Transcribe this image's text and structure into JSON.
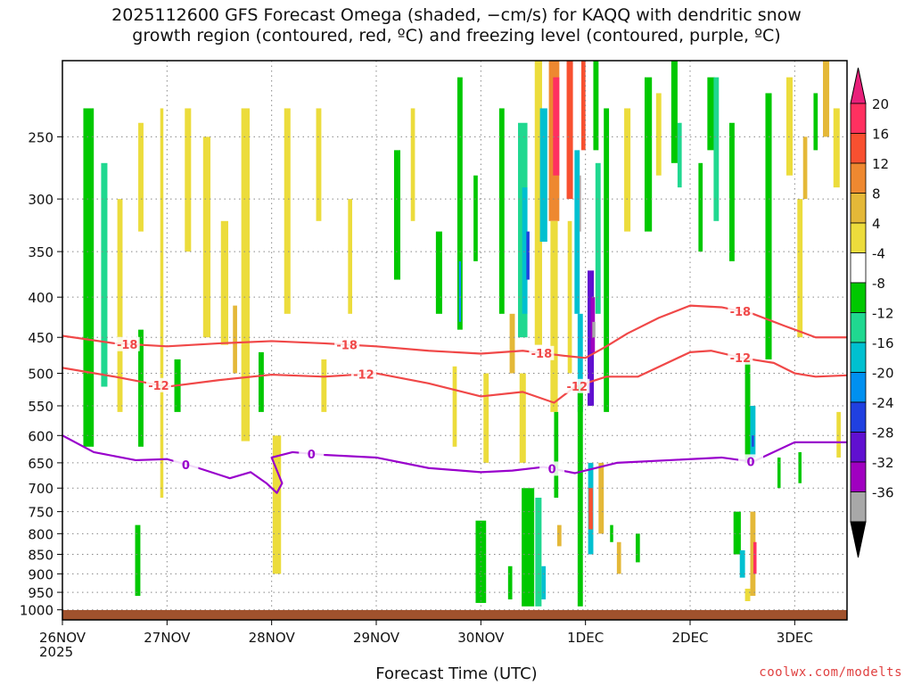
{
  "title": {
    "line1": "2025112600 GFS Forecast Omega (shaded, −cm/s) for KAQQ with dendritic snow",
    "line2": "growth region (contoured, red, ºC) and freezing level (contoured, purple, ºC)"
  },
  "credit": "coolwx.com/modelts",
  "colors": {
    "grid": "#888888",
    "dgz_contour": "#f04848",
    "freezing_contour": "#9900cc",
    "ground": "#a0522d"
  },
  "chart_data": {
    "type": "heatmap",
    "title": "2025112600 GFS Forecast Omega (shaded, −cm/s) for KAQQ",
    "xlabel": "Forecast Time (UTC)",
    "ylabel": "",
    "x_unit": "days after 26NOV 00Z",
    "xlim": [
      0,
      7.5
    ],
    "y_unit": "hPa",
    "ylim": [
      1030,
      200
    ],
    "x_ticks": [
      {
        "label": "26NOV",
        "value": 0
      },
      {
        "label": "27NOV",
        "value": 1
      },
      {
        "label": "28NOV",
        "value": 2
      },
      {
        "label": "29NOV",
        "value": 3
      },
      {
        "label": "30NOV",
        "value": 4
      },
      {
        "label": "1DEC",
        "value": 5
      },
      {
        "label": "2DEC",
        "value": 6
      },
      {
        "label": "3DEC",
        "value": 7
      }
    ],
    "x_subtitle": "2025",
    "y_ticks": [
      250,
      300,
      350,
      400,
      450,
      500,
      550,
      600,
      650,
      700,
      750,
      800,
      850,
      900,
      950,
      1000
    ],
    "colorbar": {
      "labels": [
        "20",
        "16",
        "12",
        "8",
        "4",
        "-4",
        "-8",
        "-12",
        "-16",
        "-20",
        "-24",
        "-28",
        "-32",
        "-36"
      ],
      "colors": [
        "#ff3060",
        "#f85030",
        "#ee8830",
        "#e4b838",
        "#ecdc3c",
        "#ffffff",
        "#00c800",
        "#20d890",
        "#00c0d0",
        "#0090f0",
        "#2040e0",
        "#6010d0",
        "#a000c0",
        "#a8a8a8"
      ],
      "top_cap": "#e8207a",
      "bottom_cap": "#000000"
    },
    "contours": [
      {
        "name": "dgz -18",
        "label": "-18",
        "color": "#f04848",
        "x": [
          0,
          0.5,
          1,
          1.5,
          2,
          2.5,
          3,
          3.5,
          4,
          4.4,
          4.8,
          5.0,
          5.2,
          5.4,
          5.7,
          6.0,
          6.3,
          6.6,
          6.9,
          7.2,
          7.5
        ],
        "y": [
          448,
          458,
          462,
          458,
          455,
          458,
          462,
          468,
          472,
          468,
          475,
          478,
          462,
          445,
          425,
          410,
          412,
          420,
          435,
          450,
          450
        ],
        "label_x": [
          0.62,
          2.72,
          4.58,
          6.48
        ]
      },
      {
        "name": "dgz -12",
        "label": "-12",
        "color": "#f04848",
        "x": [
          0,
          0.5,
          1,
          1.5,
          2,
          2.5,
          3,
          3.5,
          4,
          4.4,
          4.7,
          4.9,
          5.2,
          5.5,
          6.0,
          6.2,
          6.5,
          6.8,
          7.0,
          7.2,
          7.5
        ],
        "y": [
          492,
          505,
          520,
          510,
          502,
          505,
          500,
          515,
          535,
          528,
          545,
          520,
          505,
          505,
          470,
          468,
          478,
          485,
          500,
          505,
          503
        ],
        "label_x": [
          0.92,
          2.88,
          4.92,
          6.48
        ]
      },
      {
        "name": "freezing 0",
        "label": "0",
        "color": "#9900cc",
        "x": [
          0,
          0.3,
          0.7,
          1.0,
          1.3,
          1.6,
          1.8,
          1.95,
          2.05,
          2.1,
          2.0,
          2.2,
          2.5,
          3.0,
          3.5,
          4.0,
          4.3,
          4.6,
          4.9,
          5.1,
          5.3,
          5.8,
          6.3,
          6.6,
          7.0,
          7.5
        ],
        "y": [
          600,
          630,
          645,
          643,
          660,
          680,
          668,
          690,
          710,
          690,
          640,
          630,
          635,
          640,
          660,
          668,
          665,
          658,
          670,
          660,
          650,
          645,
          640,
          648,
          612,
          612
        ],
        "label_x": [
          1.18,
          2.38,
          4.68,
          6.58
        ]
      }
    ],
    "omega_cells": [
      {
        "x": 0.25,
        "p0": 230,
        "p1": 620,
        "w": 0.1,
        "v": -8
      },
      {
        "x": 0.4,
        "p0": 270,
        "p1": 520,
        "w": 0.06,
        "v": -12
      },
      {
        "x": 0.55,
        "p0": 300,
        "p1": 560,
        "w": 0.05,
        "v": 6
      },
      {
        "x": 0.75,
        "p0": 240,
        "p1": 330,
        "w": 0.05,
        "v": 6
      },
      {
        "x": 0.75,
        "p0": 440,
        "p1": 620,
        "w": 0.05,
        "v": -8
      },
      {
        "x": 0.72,
        "p0": 780,
        "p1": 960,
        "w": 0.05,
        "v": -8
      },
      {
        "x": 0.95,
        "p0": 230,
        "p1": 720,
        "w": 0.03,
        "v": 6
      },
      {
        "x": 1.1,
        "p0": 480,
        "p1": 560,
        "w": 0.06,
        "v": -8
      },
      {
        "x": 1.2,
        "p0": 230,
        "p1": 350,
        "w": 0.06,
        "v": 6
      },
      {
        "x": 1.38,
        "p0": 250,
        "p1": 450,
        "w": 0.07,
        "v": 6
      },
      {
        "x": 1.55,
        "p0": 320,
        "p1": 460,
        "w": 0.07,
        "v": 6
      },
      {
        "x": 1.65,
        "p0": 410,
        "p1": 500,
        "w": 0.04,
        "v": 8
      },
      {
        "x": 1.75,
        "p0": 230,
        "p1": 610,
        "w": 0.08,
        "v": 6
      },
      {
        "x": 1.9,
        "p0": 470,
        "p1": 560,
        "w": 0.05,
        "v": -8
      },
      {
        "x": 2.05,
        "p0": 600,
        "p1": 900,
        "w": 0.08,
        "v": 6
      },
      {
        "x": 2.15,
        "p0": 230,
        "p1": 420,
        "w": 0.06,
        "v": 6
      },
      {
        "x": 2.45,
        "p0": 230,
        "p1": 320,
        "w": 0.05,
        "v": 6
      },
      {
        "x": 2.5,
        "p0": 480,
        "p1": 560,
        "w": 0.05,
        "v": 6
      },
      {
        "x": 2.75,
        "p0": 300,
        "p1": 420,
        "w": 0.04,
        "v": 6
      },
      {
        "x": 3.2,
        "p0": 260,
        "p1": 380,
        "w": 0.06,
        "v": -8
      },
      {
        "x": 3.35,
        "p0": 230,
        "p1": 320,
        "w": 0.04,
        "v": 6
      },
      {
        "x": 3.6,
        "p0": 330,
        "p1": 420,
        "w": 0.06,
        "v": -8
      },
      {
        "x": 3.8,
        "p0": 210,
        "p1": 440,
        "w": 0.05,
        "v": -8
      },
      {
        "x": 3.8,
        "p0": 360,
        "p1": 430,
        "w": 0.02,
        "v": -20
      },
      {
        "x": 3.75,
        "p0": 490,
        "p1": 620,
        "w": 0.04,
        "v": 6
      },
      {
        "x": 3.95,
        "p0": 280,
        "p1": 360,
        "w": 0.04,
        "v": -8
      },
      {
        "x": 4.05,
        "p0": 500,
        "p1": 650,
        "w": 0.05,
        "v": 6
      },
      {
        "x": 4.0,
        "p0": 770,
        "p1": 980,
        "w": 0.1,
        "v": -8
      },
      {
        "x": 4.2,
        "p0": 230,
        "p1": 420,
        "w": 0.05,
        "v": -8
      },
      {
        "x": 4.3,
        "p0": 420,
        "p1": 500,
        "w": 0.05,
        "v": 8
      },
      {
        "x": 4.28,
        "p0": 880,
        "p1": 970,
        "w": 0.04,
        "v": -8
      },
      {
        "x": 4.4,
        "p0": 240,
        "p1": 450,
        "w": 0.09,
        "v": -12
      },
      {
        "x": 4.42,
        "p0": 290,
        "p1": 420,
        "w": 0.05,
        "v": -16
      },
      {
        "x": 4.45,
        "p0": 330,
        "p1": 380,
        "w": 0.03,
        "v": -24
      },
      {
        "x": 4.4,
        "p0": 500,
        "p1": 650,
        "w": 0.06,
        "v": 6
      },
      {
        "x": 4.45,
        "p0": 700,
        "p1": 990,
        "w": 0.12,
        "v": -8
      },
      {
        "x": 4.55,
        "p0": 200,
        "p1": 460,
        "w": 0.07,
        "v": 6
      },
      {
        "x": 4.6,
        "p0": 230,
        "p1": 340,
        "w": 0.07,
        "v": -16
      },
      {
        "x": 4.55,
        "p0": 720,
        "p1": 990,
        "w": 0.06,
        "v": -12
      },
      {
        "x": 4.6,
        "p0": 880,
        "p1": 970,
        "w": 0.04,
        "v": -16
      },
      {
        "x": 4.7,
        "p0": 200,
        "p1": 320,
        "w": 0.1,
        "v": 12
      },
      {
        "x": 4.72,
        "p0": 210,
        "p1": 280,
        "w": 0.06,
        "v": 20
      },
      {
        "x": 4.7,
        "p0": 320,
        "p1": 560,
        "w": 0.07,
        "v": 6
      },
      {
        "x": 4.72,
        "p0": 560,
        "p1": 720,
        "w": 0.04,
        "v": -8
      },
      {
        "x": 4.75,
        "p0": 780,
        "p1": 830,
        "w": 0.04,
        "v": 8
      },
      {
        "x": 4.85,
        "p0": 320,
        "p1": 500,
        "w": 0.04,
        "v": 6
      },
      {
        "x": 4.85,
        "p0": 200,
        "p1": 300,
        "w": 0.06,
        "v": 16
      },
      {
        "x": 4.92,
        "p0": 260,
        "p1": 420,
        "w": 0.05,
        "v": -16
      },
      {
        "x": 4.95,
        "p0": 420,
        "p1": 560,
        "w": 0.05,
        "v": -16
      },
      {
        "x": 4.95,
        "p0": 520,
        "p1": 990,
        "w": 0.05,
        "v": -8
      },
      {
        "x": 4.95,
        "p0": 280,
        "p1": 330,
        "w": 0.015,
        "v": -36
      },
      {
        "x": 4.98,
        "p0": 200,
        "p1": 260,
        "w": 0.04,
        "v": 16
      },
      {
        "x": 5.1,
        "p0": 200,
        "p1": 260,
        "w": 0.05,
        "v": -8
      },
      {
        "x": 5.05,
        "p0": 370,
        "p1": 550,
        "w": 0.06,
        "v": -28
      },
      {
        "x": 5.07,
        "p0": 400,
        "p1": 470,
        "w": 0.04,
        "v": -32
      },
      {
        "x": 5.08,
        "p0": 430,
        "p1": 450,
        "w": 0.03,
        "v": -36
      },
      {
        "x": 5.05,
        "p0": 650,
        "p1": 850,
        "w": 0.05,
        "v": -16
      },
      {
        "x": 5.05,
        "p0": 700,
        "p1": 790,
        "w": 0.04,
        "v": 16
      },
      {
        "x": 5.12,
        "p0": 270,
        "p1": 420,
        "w": 0.05,
        "v": -12
      },
      {
        "x": 5.15,
        "p0": 650,
        "p1": 800,
        "w": 0.05,
        "v": 8
      },
      {
        "x": 5.2,
        "p0": 230,
        "p1": 560,
        "w": 0.05,
        "v": -8
      },
      {
        "x": 5.25,
        "p0": 780,
        "p1": 820,
        "w": 0.03,
        "v": -8
      },
      {
        "x": 5.32,
        "p0": 820,
        "p1": 900,
        "w": 0.04,
        "v": 8
      },
      {
        "x": 5.4,
        "p0": 230,
        "p1": 330,
        "w": 0.06,
        "v": 4
      },
      {
        "x": 5.5,
        "p0": 800,
        "p1": 870,
        "w": 0.04,
        "v": -8
      },
      {
        "x": 5.6,
        "p0": 210,
        "p1": 330,
        "w": 0.07,
        "v": -8
      },
      {
        "x": 5.7,
        "p0": 220,
        "p1": 280,
        "w": 0.05,
        "v": 6
      },
      {
        "x": 5.85,
        "p0": 200,
        "p1": 270,
        "w": 0.06,
        "v": -8
      },
      {
        "x": 5.9,
        "p0": 240,
        "p1": 290,
        "w": 0.04,
        "v": -12
      },
      {
        "x": 6.1,
        "p0": 270,
        "p1": 350,
        "w": 0.04,
        "v": -8
      },
      {
        "x": 6.2,
        "p0": 210,
        "p1": 260,
        "w": 0.07,
        "v": -8
      },
      {
        "x": 6.25,
        "p0": 210,
        "p1": 320,
        "w": 0.05,
        "v": -12
      },
      {
        "x": 6.4,
        "p0": 240,
        "p1": 360,
        "w": 0.05,
        "v": -8
      },
      {
        "x": 6.45,
        "p0": 750,
        "p1": 850,
        "w": 0.07,
        "v": -8
      },
      {
        "x": 6.5,
        "p0": 840,
        "p1": 910,
        "w": 0.05,
        "v": -16
      },
      {
        "x": 6.55,
        "p0": 480,
        "p1": 650,
        "w": 0.05,
        "v": -8
      },
      {
        "x": 6.6,
        "p0": 550,
        "p1": 640,
        "w": 0.05,
        "v": -16
      },
      {
        "x": 6.6,
        "p0": 600,
        "p1": 620,
        "w": 0.02,
        "v": -24
      },
      {
        "x": 6.6,
        "p0": 750,
        "p1": 960,
        "w": 0.05,
        "v": 8
      },
      {
        "x": 6.62,
        "p0": 820,
        "p1": 900,
        "w": 0.03,
        "v": 20
      },
      {
        "x": 6.55,
        "p0": 940,
        "p1": 975,
        "w": 0.05,
        "v": 6
      },
      {
        "x": 6.75,
        "p0": 220,
        "p1": 480,
        "w": 0.06,
        "v": -8
      },
      {
        "x": 6.85,
        "p0": 640,
        "p1": 700,
        "w": 0.03,
        "v": -8
      },
      {
        "x": 6.95,
        "p0": 210,
        "p1": 280,
        "w": 0.06,
        "v": 6
      },
      {
        "x": 7.05,
        "p0": 300,
        "p1": 450,
        "w": 0.05,
        "v": 6
      },
      {
        "x": 7.05,
        "p0": 630,
        "p1": 690,
        "w": 0.03,
        "v": -8
      },
      {
        "x": 7.1,
        "p0": 250,
        "p1": 300,
        "w": 0.04,
        "v": 8
      },
      {
        "x": 7.2,
        "p0": 220,
        "p1": 260,
        "w": 0.04,
        "v": -8
      },
      {
        "x": 7.3,
        "p0": 200,
        "p1": 250,
        "w": 0.06,
        "v": 8
      },
      {
        "x": 7.4,
        "p0": 230,
        "p1": 290,
        "w": 0.06,
        "v": 6
      },
      {
        "x": 7.42,
        "p0": 560,
        "p1": 640,
        "w": 0.04,
        "v": 6
      }
    ]
  }
}
